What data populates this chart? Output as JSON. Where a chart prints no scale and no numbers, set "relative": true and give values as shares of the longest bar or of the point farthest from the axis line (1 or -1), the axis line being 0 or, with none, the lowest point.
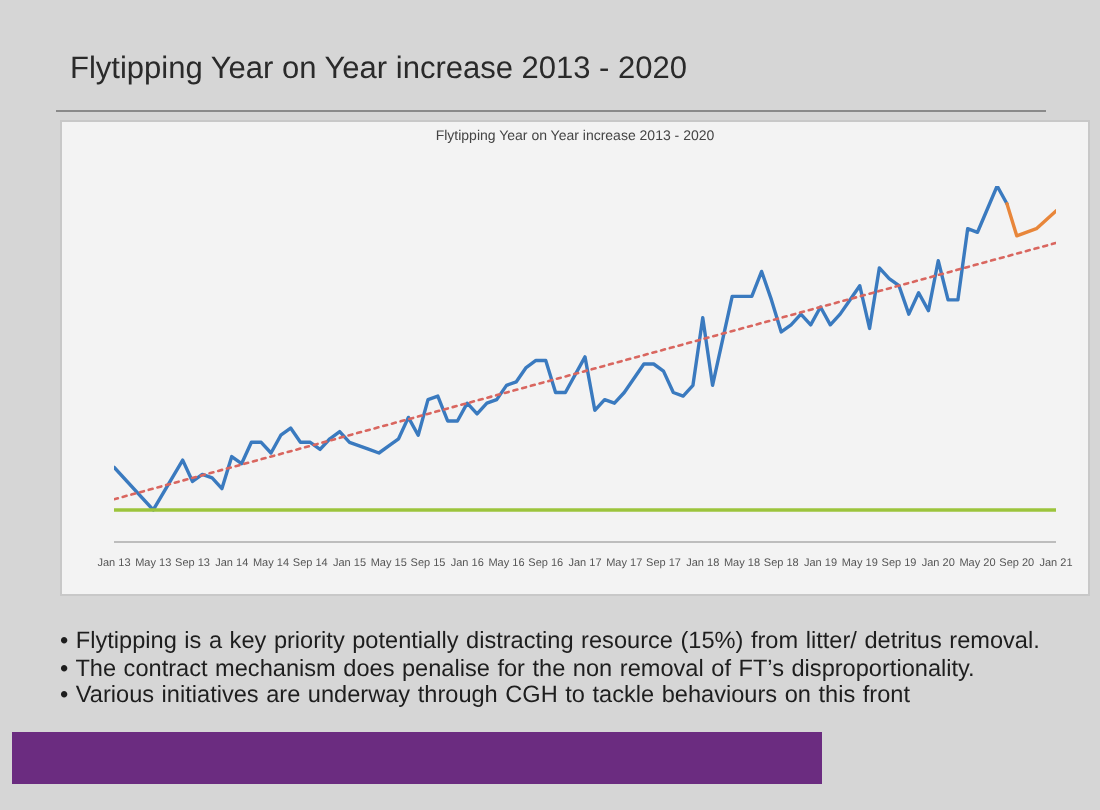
{
  "chart_data": {
    "type": "line",
    "title": "Flytipping Year on Year increase 2013 - 2020",
    "subtitle": "Flytipping Year on Year increase 2013 - 2020",
    "relative": true,
    "xlim": [
      "2013-01",
      "2021-01"
    ],
    "xticks": [
      {
        "value": "2013-01",
        "label": "Jan 13"
      },
      {
        "value": "2013-05",
        "label": "May 13"
      },
      {
        "value": "2013-09",
        "label": "Sep 13"
      },
      {
        "value": "2014-01",
        "label": "Jan 14"
      },
      {
        "value": "2014-05",
        "label": "May 14"
      },
      {
        "value": "2014-09",
        "label": "Sep 14"
      },
      {
        "value": "2015-01",
        "label": "Jan 15"
      },
      {
        "value": "2015-05",
        "label": "May 15"
      },
      {
        "value": "2015-09",
        "label": "Sep 15"
      },
      {
        "value": "2016-01",
        "label": "Jan 16"
      },
      {
        "value": "2016-05",
        "label": "May 16"
      },
      {
        "value": "2016-09",
        "label": "Sep 16"
      },
      {
        "value": "2017-01",
        "label": "Jan 17"
      },
      {
        "value": "2017-05",
        "label": "May 17"
      },
      {
        "value": "2017-09",
        "label": "Sep 17"
      },
      {
        "value": "2018-01",
        "label": "Jan 18"
      },
      {
        "value": "2018-05",
        "label": "May 18"
      },
      {
        "value": "2018-09",
        "label": "Sep 18"
      },
      {
        "value": "2019-01",
        "label": "Jan 19"
      },
      {
        "value": "2019-05",
        "label": "May 19"
      },
      {
        "value": "2019-09",
        "label": "Sep 19"
      },
      {
        "value": "2020-01",
        "label": "Jan 20"
      },
      {
        "value": "2020-05",
        "label": "May 20"
      },
      {
        "value": "2020-09",
        "label": "Sep 20"
      },
      {
        "value": "2021-01",
        "label": "Jan 21"
      }
    ],
    "series": [
      {
        "color": "#3a7abf",
        "x": [
          "2013-01",
          "2013-05",
          "2013-08",
          "2013-09",
          "2013-10",
          "2013-11",
          "2013-12",
          "2014-01",
          "2014-02",
          "2014-03",
          "2014-04",
          "2014-05",
          "2014-06",
          "2014-07",
          "2014-08",
          "2014-09",
          "2014-10",
          "2014-11",
          "2014-12",
          "2015-01",
          "2015-03",
          "2015-04",
          "2015-05",
          "2015-06",
          "2015-07",
          "2015-08",
          "2015-09",
          "2015-10",
          "2015-11",
          "2015-12",
          "2016-01",
          "2016-02",
          "2016-03",
          "2016-04",
          "2016-05",
          "2016-06",
          "2016-07",
          "2016-08",
          "2016-09",
          "2016-10",
          "2016-11",
          "2017-01",
          "2017-02",
          "2017-03",
          "2017-04",
          "2017-05",
          "2017-07",
          "2017-08",
          "2017-09",
          "2017-10",
          "2017-11",
          "2017-12",
          "2018-01",
          "2018-02",
          "2018-04",
          "2018-05",
          "2018-06",
          "2018-07",
          "2018-08",
          "2018-09",
          "2018-10",
          "2018-11",
          "2018-12",
          "2019-01",
          "2019-02",
          "2019-03",
          "2019-04",
          "2019-05",
          "2019-06",
          "2019-07",
          "2019-08",
          "2019-09",
          "2019-10",
          "2019-11",
          "2019-12",
          "2020-01",
          "2020-02",
          "2020-03",
          "2020-04",
          "2020-05",
          "2020-07",
          "2020-08"
        ],
        "values": [
          0.21,
          0.09,
          0.23,
          0.17,
          0.19,
          0.18,
          0.15,
          0.24,
          0.22,
          0.28,
          0.28,
          0.25,
          0.3,
          0.32,
          0.28,
          0.28,
          0.26,
          0.29,
          0.31,
          0.28,
          0.26,
          0.25,
          0.27,
          0.29,
          0.35,
          0.3,
          0.4,
          0.41,
          0.34,
          0.34,
          0.39,
          0.36,
          0.39,
          0.4,
          0.44,
          0.45,
          0.49,
          0.51,
          0.51,
          0.42,
          0.42,
          0.52,
          0.37,
          0.4,
          0.39,
          0.42,
          0.5,
          0.5,
          0.48,
          0.42,
          0.41,
          0.44,
          0.63,
          0.44,
          0.69,
          0.69,
          0.69,
          0.76,
          0.68,
          0.59,
          0.61,
          0.64,
          0.61,
          0.66,
          0.61,
          0.64,
          0.68,
          0.72,
          0.6,
          0.77,
          0.74,
          0.72,
          0.64,
          0.7,
          0.65,
          0.79,
          0.68,
          0.68,
          0.88,
          0.87,
          1,
          0.95
        ]
      },
      {
        "color": "#e8863a",
        "x": [
          "2020-08",
          "2020-09",
          "2020-11",
          "2021-01"
        ],
        "values": [
          0.95,
          0.86,
          0.88,
          0.93
        ]
      },
      {
        "color": "#9cc43c",
        "x": [
          "2013-01",
          "2021-01"
        ],
        "values": [
          0.09,
          0.09
        ]
      },
      {
        "color": "#d9665f",
        "line_style": "dotted",
        "x": [
          "2013-01",
          "2021-01"
        ],
        "values": [
          0.12,
          0.84
        ]
      }
    ],
    "annotations": [
      "• Flytipping is a key priority potentially distracting resource (15%) from litter/ detritus removal.",
      "• The contract mechanism does penalise for the non removal of FT’s disproportionality.",
      "• Various initiatives are underway through CGH to tackle behaviours on this front"
    ]
  }
}
